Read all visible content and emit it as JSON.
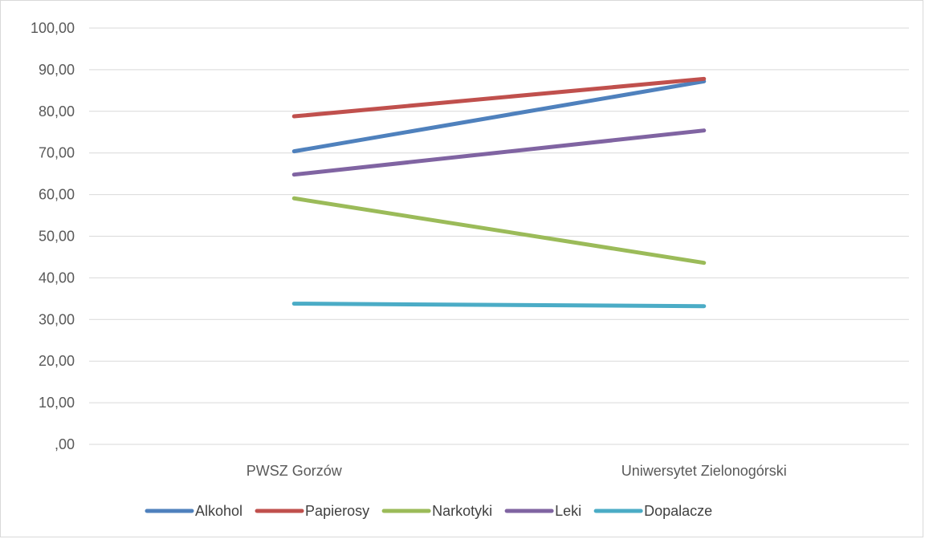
{
  "chart_data": {
    "type": "line",
    "title": "",
    "xlabel": "",
    "ylabel": "",
    "categories": [
      "PWSZ Gorzów",
      "Uniwersytet Zielonogórski"
    ],
    "ylim": [
      0,
      100
    ],
    "yticks": [
      ",00",
      "10,00",
      "20,00",
      "30,00",
      "40,00",
      "50,00",
      "60,00",
      "70,00",
      "80,00",
      "90,00",
      "100,00"
    ],
    "grid": true,
    "legend_position": "bottom",
    "series": [
      {
        "name": "Alkohol",
        "color": "#4f81bd",
        "values": [
          70.4,
          87.2
        ]
      },
      {
        "name": "Papierosy",
        "color": "#c0504d",
        "values": [
          78.8,
          87.8
        ]
      },
      {
        "name": "Narkotyki",
        "color": "#9bbb59",
        "values": [
          59.1,
          43.6
        ]
      },
      {
        "name": "Leki",
        "color": "#8064a2",
        "values": [
          64.8,
          75.4
        ]
      },
      {
        "name": "Dopalacze",
        "color": "#4bacc6",
        "values": [
          33.8,
          33.2
        ]
      }
    ]
  }
}
